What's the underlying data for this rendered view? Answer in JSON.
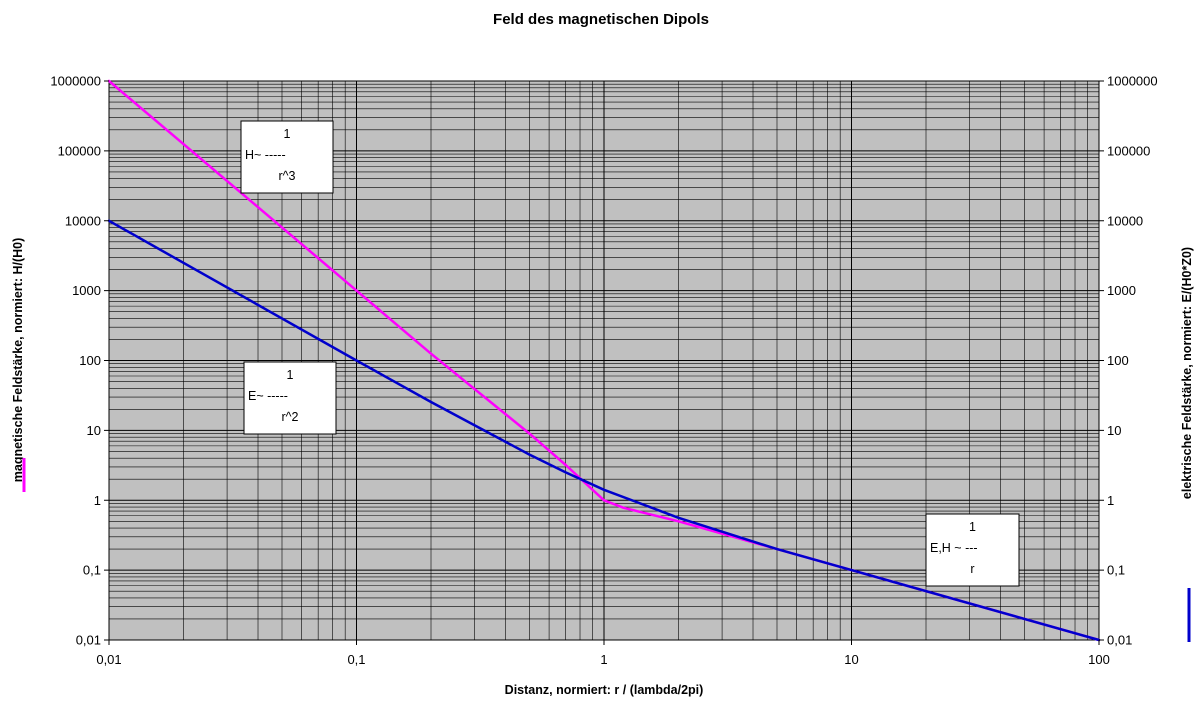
{
  "chart_data": {
    "type": "line",
    "title": "Feld des magnetischen Dipols",
    "xlabel": "Distanz, normiert:    r / (lambda/2pi)",
    "ylabel_left": "magnetische Feldstärke, normiert: H/(H0)",
    "ylabel_right": "elektrische Feldstärke, normiert:  E/(H0*Z0)",
    "x_scale": "log",
    "y_scale": "log",
    "xlim": [
      0.01,
      100
    ],
    "ylim": [
      0.01,
      1000000
    ],
    "x_ticks": [
      {
        "value": 0.01,
        "label": "0,01"
      },
      {
        "value": 0.1,
        "label": "0,1"
      },
      {
        "value": 1,
        "label": "1"
      },
      {
        "value": 10,
        "label": "10"
      },
      {
        "value": 100,
        "label": "100"
      }
    ],
    "y_ticks": [
      {
        "value": 0.01,
        "label": "0,01"
      },
      {
        "value": 0.1,
        "label": "0,1"
      },
      {
        "value": 1,
        "label": "1"
      },
      {
        "value": 10,
        "label": "10"
      },
      {
        "value": 100,
        "label": "100"
      },
      {
        "value": 1000,
        "label": "1000"
      },
      {
        "value": 10000,
        "label": "10000"
      },
      {
        "value": 100000,
        "label": "100000"
      },
      {
        "value": 1000000,
        "label": "1000000"
      }
    ],
    "grid": true,
    "plot_background": "#c0c0c0",
    "series": [
      {
        "color": "#ff00ff",
        "axis": "left",
        "points": [
          [
            0.01,
            1000000
          ],
          [
            0.1,
            1000
          ],
          [
            0.2,
            125
          ],
          [
            0.5,
            9
          ],
          [
            0.7,
            3.2
          ],
          [
            1,
            1
          ],
          [
            1.2,
            0.78
          ],
          [
            2,
            0.5
          ],
          [
            5,
            0.2
          ],
          [
            10,
            0.1
          ],
          [
            100,
            0.01
          ]
        ]
      },
      {
        "color": "#0000cc",
        "axis": "right",
        "points": [
          [
            0.01,
            10000
          ],
          [
            0.1,
            100
          ],
          [
            0.2,
            25.5
          ],
          [
            0.5,
            4.5
          ],
          [
            0.7,
            2.5
          ],
          [
            1,
            1.41
          ],
          [
            2,
            0.56
          ],
          [
            5,
            0.2
          ],
          [
            10,
            0.1
          ],
          [
            100,
            0.01
          ]
        ]
      }
    ],
    "annotations": [
      {
        "lines": [
          "1",
          "H~ -----",
          "r^3"
        ]
      },
      {
        "lines": [
          "1",
          "E~ -----",
          "r^2"
        ]
      },
      {
        "lines": [
          "1",
          "E,H ~ ---",
          "r"
        ]
      }
    ]
  }
}
